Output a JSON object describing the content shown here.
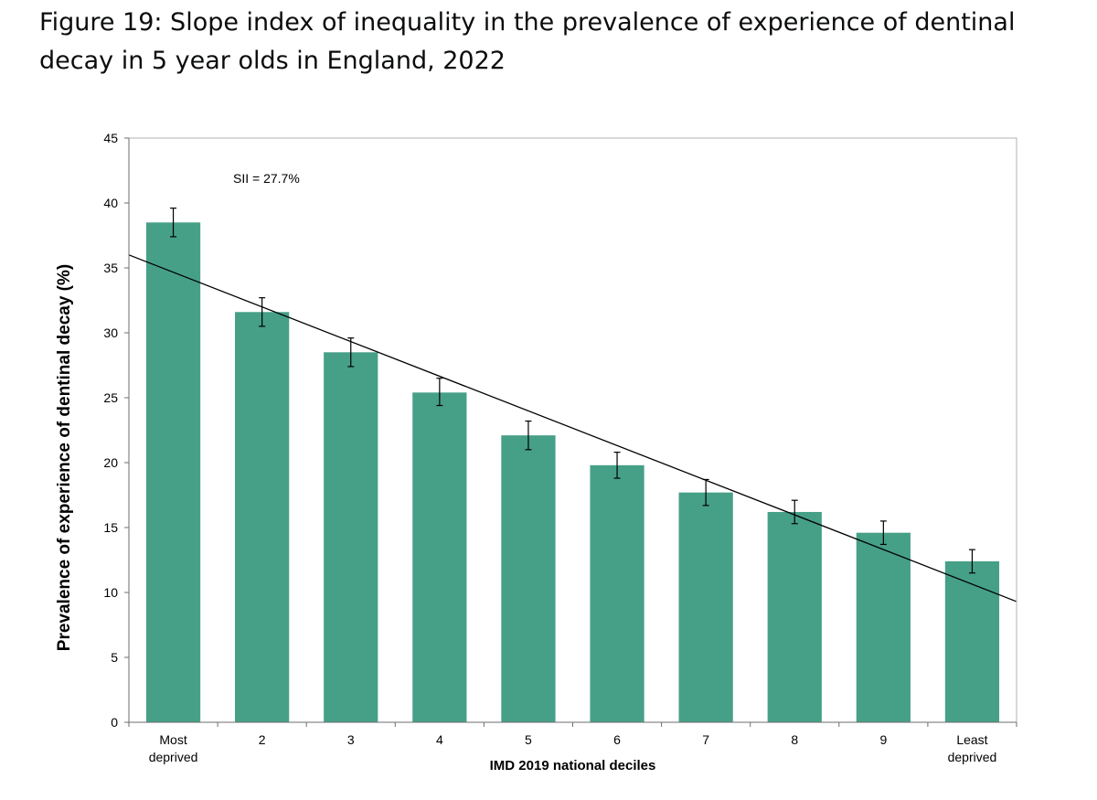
{
  "figure": {
    "title": "Figure 19: Slope index of inequality in the prevalence of experience of dentinal decay in 5 year olds in England, 2022"
  },
  "chart_data": {
    "type": "bar",
    "categories": [
      [
        "Most",
        "deprived"
      ],
      [
        "2"
      ],
      [
        "3"
      ],
      [
        "4"
      ],
      [
        "5"
      ],
      [
        "6"
      ],
      [
        "7"
      ],
      [
        "8"
      ],
      [
        "9"
      ],
      [
        "Least",
        "deprived"
      ]
    ],
    "values": [
      38.5,
      31.6,
      28.5,
      25.4,
      22.1,
      19.8,
      17.7,
      16.2,
      14.6,
      12.4
    ],
    "ci_lower": [
      37.4,
      30.5,
      27.4,
      24.4,
      21.0,
      18.8,
      16.7,
      15.3,
      13.7,
      11.5
    ],
    "ci_upper": [
      39.6,
      32.7,
      29.6,
      26.5,
      23.2,
      20.8,
      18.7,
      17.1,
      15.5,
      13.3
    ],
    "trend_line": {
      "start": 36.0,
      "end": 9.3
    },
    "annotation": "SII = 27.7%",
    "xlabel": "IMD 2019 national deciles",
    "ylabel": "Prevalence of experience of dentinal decay (%)",
    "ylim": [
      0,
      45
    ],
    "yticks": [
      0,
      5,
      10,
      15,
      20,
      25,
      30,
      35,
      40,
      45
    ],
    "grid": false,
    "legend": "none",
    "colors": {
      "bar": "#46a088",
      "trend": "#000000",
      "error_bar": "#000000",
      "axis": "#b3b3b3"
    }
  }
}
